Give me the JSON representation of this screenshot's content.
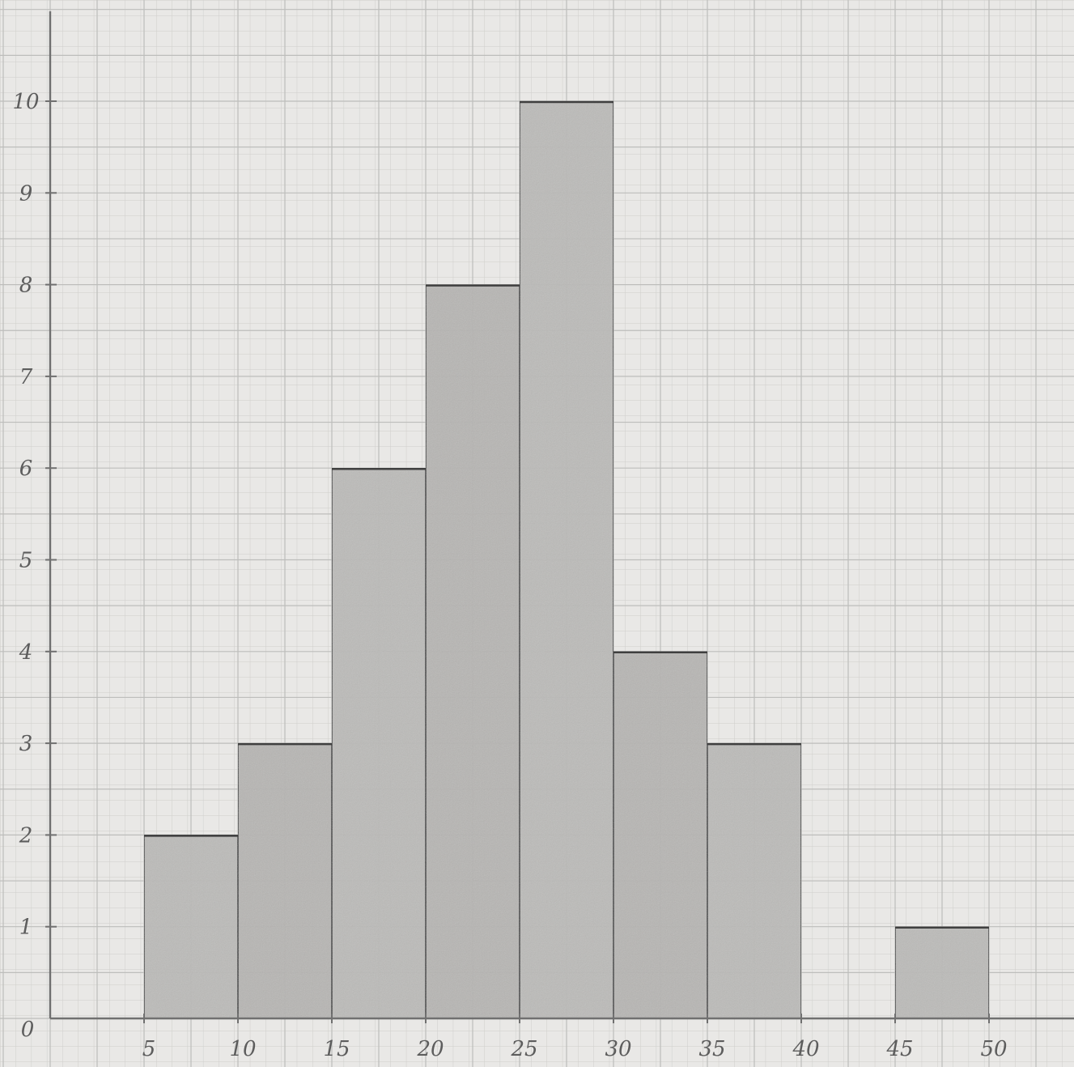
{
  "chart_data": {
    "type": "bar",
    "style": "hand-drawn histogram on graph paper",
    "bins": [
      {
        "from": 5,
        "to": 10,
        "value": 2
      },
      {
        "from": 10,
        "to": 15,
        "value": 3
      },
      {
        "from": 15,
        "to": 20,
        "value": 6
      },
      {
        "from": 20,
        "to": 25,
        "value": 8
      },
      {
        "from": 25,
        "to": 30,
        "value": 10
      },
      {
        "from": 30,
        "to": 35,
        "value": 4
      },
      {
        "from": 35,
        "to": 40,
        "value": 3
      },
      {
        "from": 40,
        "to": 45,
        "value": 0
      },
      {
        "from": 45,
        "to": 50,
        "value": 1
      }
    ],
    "x_ticks": [
      "5",
      "10",
      "15",
      "20",
      "25",
      "30",
      "35",
      "40",
      "45",
      "50"
    ],
    "x_tick_values": [
      5,
      10,
      15,
      20,
      25,
      30,
      35,
      40,
      45,
      50
    ],
    "y_ticks": [
      "0",
      "1",
      "2",
      "3",
      "4",
      "5",
      "6",
      "7",
      "8",
      "9",
      "10"
    ],
    "y_tick_values": [
      0,
      1,
      2,
      3,
      4,
      5,
      6,
      7,
      8,
      9,
      10
    ],
    "xlim": [
      0,
      55
    ],
    "ylim": [
      0,
      11
    ],
    "title": "",
    "xlabel": "",
    "ylabel": "",
    "grid": true,
    "legend": "none",
    "colors": {
      "paper": "#e9e8e6",
      "grid": "#bdbdbb",
      "bar_fill": "#b9b8b6",
      "bar_stroke": "#555555",
      "axis": "#707070"
    }
  }
}
